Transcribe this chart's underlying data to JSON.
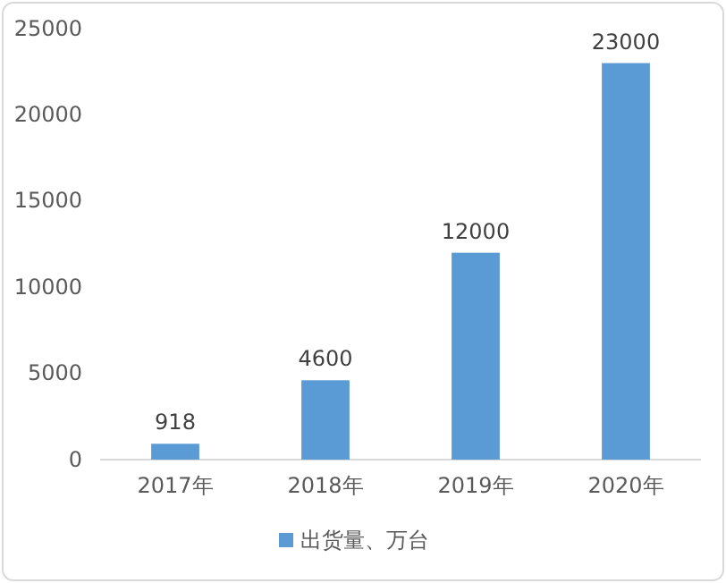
{
  "chart_data": {
    "type": "bar",
    "categories": [
      "2017年",
      "2018年",
      "2019年",
      "2020年"
    ],
    "series": [
      {
        "name": "出货量、万台",
        "color": "#5b9bd5",
        "values": [
          918,
          4600,
          12000,
          23000
        ]
      }
    ],
    "ylim": [
      0,
      25000
    ],
    "yticks": [
      0,
      5000,
      10000,
      15000,
      20000,
      25000
    ],
    "grid": false,
    "legend": "bottom",
    "data_labels": true
  }
}
